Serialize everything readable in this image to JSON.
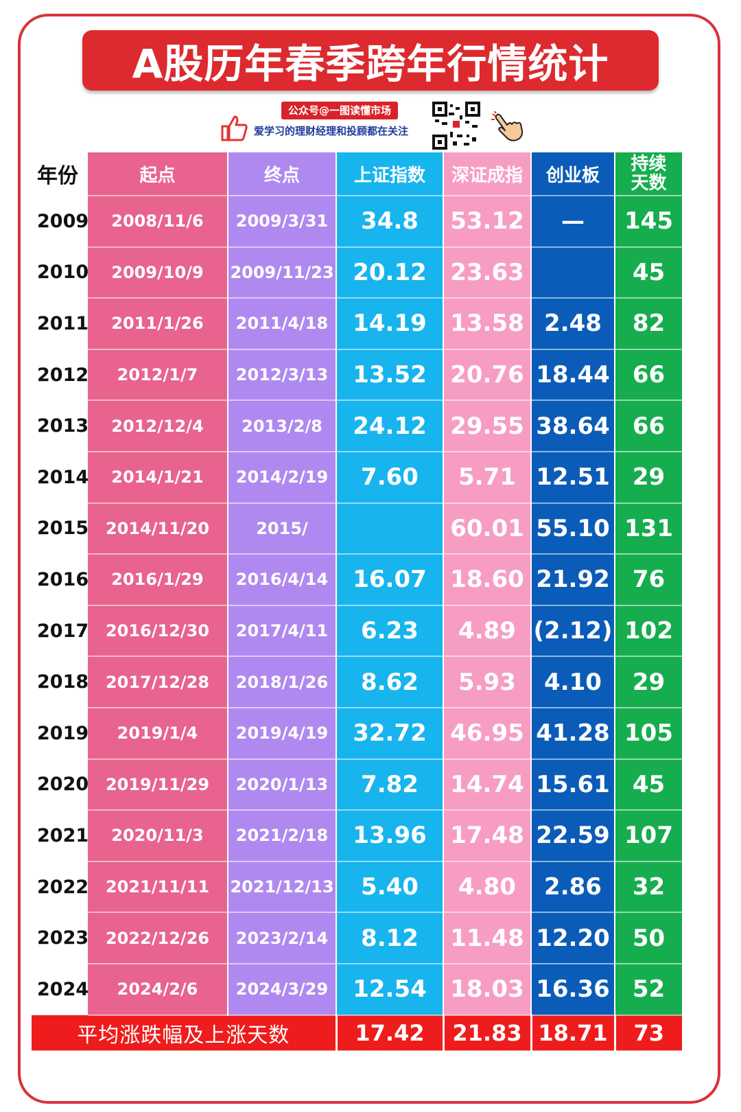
{
  "title": "A股历年春季跨年行情统计",
  "promo": {
    "tag": "公众号@一图读懂市场",
    "subtitle": "爱学习的理财经理和投顾都在关注",
    "icons": [
      "thumbs-up-icon",
      "qr-code-icon",
      "pointing-hand-icon"
    ]
  },
  "colors": {
    "title_bg": "#dc2a2f",
    "start_col": "#e8638d",
    "end_col": "#b089f0",
    "sh_col": "#18b4ee",
    "sz_col": "#f79dc4",
    "cy_col": "#0b5cb8",
    "dur_col": "#16ad4e",
    "footer_bg": "#ee1c1c"
  },
  "chart_data": {
    "type": "table",
    "title": "A股历年春季跨年行情统计",
    "columns": [
      "年份",
      "起点",
      "终点",
      "上证指数",
      "深证成指",
      "创业板",
      "持续天数"
    ],
    "rows": [
      {
        "year": "2009",
        "start": "2008/11/6",
        "end": "2009/3/31",
        "sh": "34.8",
        "sz": "53.12",
        "cy": "—",
        "days": "145"
      },
      {
        "year": "2010",
        "start": "2009/10/9",
        "end": "2009/11/23",
        "sh": "20.12",
        "sz": "23.63",
        "cy": "",
        "days": "45"
      },
      {
        "year": "2011",
        "start": "2011/1/26",
        "end": "2011/4/18",
        "sh": "14.19",
        "sz": "13.58",
        "cy": "2.48",
        "days": "82"
      },
      {
        "year": "2012",
        "start": "2012/1/7",
        "end": "2012/3/13",
        "sh": "13.52",
        "sz": "20.76",
        "cy": "18.44",
        "days": "66"
      },
      {
        "year": "2013",
        "start": "2012/12/4",
        "end": "2013/2/8",
        "sh": "24.12",
        "sz": "29.55",
        "cy": "38.64",
        "days": "66"
      },
      {
        "year": "2014",
        "start": "2014/1/21",
        "end": "2014/2/19",
        "sh": "7.60",
        "sz": "5.71",
        "cy": "12.51",
        "days": "29"
      },
      {
        "year": "2015",
        "start": "2014/11/20",
        "end": "2015/",
        "sh": "",
        "sz": "60.01",
        "cy": "55.10",
        "days": "131"
      },
      {
        "year": "2016",
        "start": "2016/1/29",
        "end": "2016/4/14",
        "sh": "16.07",
        "sz": "18.60",
        "cy": "21.92",
        "days": "76"
      },
      {
        "year": "2017",
        "start": "2016/12/30",
        "end": "2017/4/11",
        "sh": "6.23",
        "sz": "4.89",
        "cy": "(2.12)",
        "days": "102"
      },
      {
        "year": "2018",
        "start": "2017/12/28",
        "end": "2018/1/26",
        "sh": "8.62",
        "sz": "5.93",
        "cy": "4.10",
        "days": "29"
      },
      {
        "year": "2019",
        "start": "2019/1/4",
        "end": "2019/4/19",
        "sh": "32.72",
        "sz": "46.95",
        "cy": "41.28",
        "days": "105"
      },
      {
        "year": "2020",
        "start": "2019/11/29",
        "end": "2020/1/13",
        "sh": "7.82",
        "sz": "14.74",
        "cy": "15.61",
        "days": "45"
      },
      {
        "year": "2021",
        "start": "2020/11/3",
        "end": "2021/2/18",
        "sh": "13.96",
        "sz": "17.48",
        "cy": "22.59",
        "days": "107"
      },
      {
        "year": "2022",
        "start": "2021/11/11",
        "end": "2021/12/13",
        "sh": "5.40",
        "sz": "4.80",
        "cy": "2.86",
        "days": "32"
      },
      {
        "year": "2023",
        "start": "2022/12/26",
        "end": "2023/2/14",
        "sh": "8.12",
        "sz": "11.48",
        "cy": "12.20",
        "days": "50"
      },
      {
        "year": "2024",
        "start": "2024/2/6",
        "end": "2024/3/29",
        "sh": "12.54",
        "sz": "18.03",
        "cy": "16.36",
        "days": "52"
      }
    ],
    "footer": {
      "label": "平均涨跌幅及上涨天数",
      "sh": "17.42",
      "sz": "21.83",
      "cy": "18.71",
      "days": "73"
    }
  }
}
